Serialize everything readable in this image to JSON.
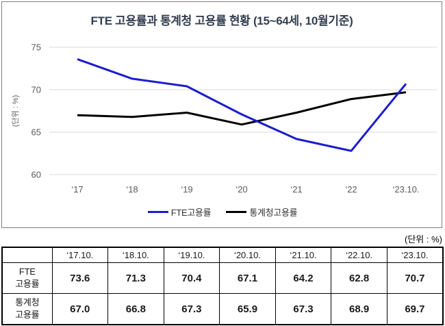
{
  "chart": {
    "title": "FTE 고용률과 통계청 고용률 현황 (15~64세, 10월기준)",
    "y_unit_label": "(단위 : %)"
  },
  "chart_data": {
    "type": "line",
    "title": "FTE 고용률과 통계청 고용률 현황 (15~64세, 10월기준)",
    "categories": [
      "‘17",
      "‘18",
      "‘19",
      "‘20",
      "‘21",
      "‘22",
      "‘23.10."
    ],
    "series": [
      {
        "name": "FTE고용률",
        "color": "#1b1bd1",
        "values": [
          73.6,
          71.3,
          70.4,
          67.1,
          64.2,
          62.8,
          70.7
        ]
      },
      {
        "name": "통계청고용률",
        "color": "#000000",
        "values": [
          67.0,
          66.8,
          67.3,
          65.9,
          67.3,
          68.9,
          69.7
        ]
      }
    ],
    "ylabel": "(단위 : %)",
    "xlabel": "",
    "ylim": [
      60,
      75
    ],
    "yticks": [
      60,
      65,
      70,
      75
    ],
    "grid": true,
    "legend_position": "bottom"
  },
  "table": {
    "unit_label": "(단위 : %)",
    "header": [
      "",
      "‘17.10.",
      "‘18.10.",
      "‘19.10.",
      "‘20.10.",
      "‘21.10.",
      "‘22.10.",
      "‘23.10."
    ],
    "rows": [
      {
        "label_lines": [
          "FTE",
          "고용률"
        ],
        "values": [
          "73.6",
          "71.3",
          "70.4",
          "67.1",
          "64.2",
          "62.8",
          "70.7"
        ]
      },
      {
        "label_lines": [
          "통계청",
          "고용률"
        ],
        "values": [
          "67.0",
          "66.8",
          "67.3",
          "65.9",
          "67.3",
          "68.9",
          "69.7"
        ]
      }
    ]
  },
  "colors": {
    "grid_line": "#d9d9d9",
    "axis_text": "#595959",
    "title_text": "#333f50",
    "chart_border": "#7f7f7f",
    "fte_line": "#1b1bd1",
    "stats_line": "#000000"
  }
}
